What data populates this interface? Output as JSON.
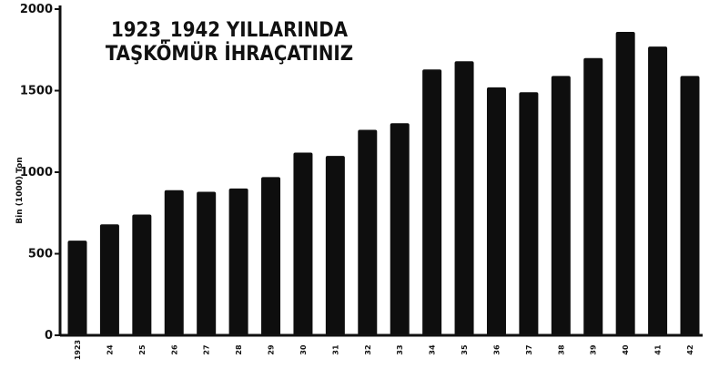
{
  "chart_data": {
    "type": "bar",
    "title_lines": [
      "1923_1942 YILLARINDA",
      "TAŞKÖMÜR İHRAÇATINIZ"
    ],
    "ylabel": "Bin (1000) Ton",
    "xlabel": "",
    "ylim": [
      0,
      2000
    ],
    "yticks": [
      0,
      500,
      1000,
      1500,
      2000
    ],
    "ytick_labels": [
      "0",
      "500",
      "1000",
      "1500",
      "2000"
    ],
    "categories": [
      "1923",
      "24",
      "25",
      "26",
      "27",
      "28",
      "29",
      "30",
      "31",
      "32",
      "33",
      "34",
      "35",
      "36",
      "37",
      "38",
      "39",
      "40",
      "41",
      "42"
    ],
    "values": [
      580,
      680,
      740,
      890,
      880,
      900,
      970,
      1120,
      1100,
      1260,
      1300,
      1630,
      1680,
      1520,
      1490,
      1590,
      1700,
      1860,
      1770,
      1590
    ],
    "grid": false,
    "legend": "none",
    "colors": {
      "bar": "#0e0e0e",
      "background": "#ffffff"
    }
  }
}
